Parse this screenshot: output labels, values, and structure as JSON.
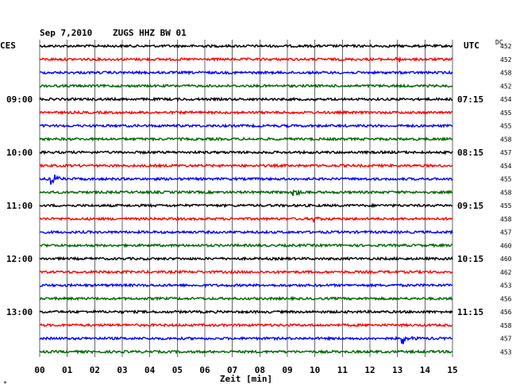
{
  "header": {
    "date": "Sep 7,2010",
    "station": "ZUGS HHZ BW 01",
    "left_tz": "CES",
    "right_tz": "UTC",
    "dc_label": "DC"
  },
  "footer": {
    "xlabel": "Zeit [min]",
    "corner_mark": "*"
  },
  "chart_data": {
    "type": "line",
    "title": "Sep 7,2010   ZUGS HHZ BW 01",
    "xlabel": "Zeit [min]",
    "xlim": [
      0,
      15
    ],
    "x_ticks": [
      "00",
      "01",
      "02",
      "03",
      "04",
      "05",
      "06",
      "07",
      "08",
      "09",
      "10",
      "11",
      "12",
      "13",
      "14",
      "15"
    ],
    "grid": true,
    "trace_colors": [
      "#000000",
      "#ff0000",
      "#0000ff",
      "#006600"
    ],
    "left_time_labels": [
      {
        "trace": 4,
        "label": "09:00"
      },
      {
        "trace": 8,
        "label": "10:00"
      },
      {
        "trace": 12,
        "label": "11:00"
      },
      {
        "trace": 16,
        "label": "12:00"
      },
      {
        "trace": 20,
        "label": "13:00"
      }
    ],
    "right_time_labels": [
      {
        "trace": 4,
        "label": "07:15"
      },
      {
        "trace": 8,
        "label": "08:15"
      },
      {
        "trace": 12,
        "label": "09:15"
      },
      {
        "trace": 16,
        "label": "10:15"
      },
      {
        "trace": 20,
        "label": "11:15"
      }
    ],
    "dc_offsets": [
      "452",
      "452",
      "458",
      "452",
      "454",
      "455",
      "455",
      "458",
      "457",
      "454",
      "455",
      "458",
      "455",
      "458",
      "457",
      "460",
      "460",
      "462",
      "453",
      "456",
      "456",
      "458",
      "457",
      "453"
    ],
    "events": [
      {
        "trace": 10,
        "minute": 0.45,
        "amplitude": 8
      },
      {
        "trace": 11,
        "minute": 9.25,
        "amplitude": 5
      },
      {
        "trace": 22,
        "minute": 13.2,
        "amplitude": 7
      },
      {
        "trace": 1,
        "minute": 13.0,
        "amplitude": 5
      },
      {
        "trace": 4,
        "minute": 10.0,
        "amplitude": 4
      },
      {
        "trace": 13,
        "minute": 10.0,
        "amplitude": 5
      }
    ]
  }
}
